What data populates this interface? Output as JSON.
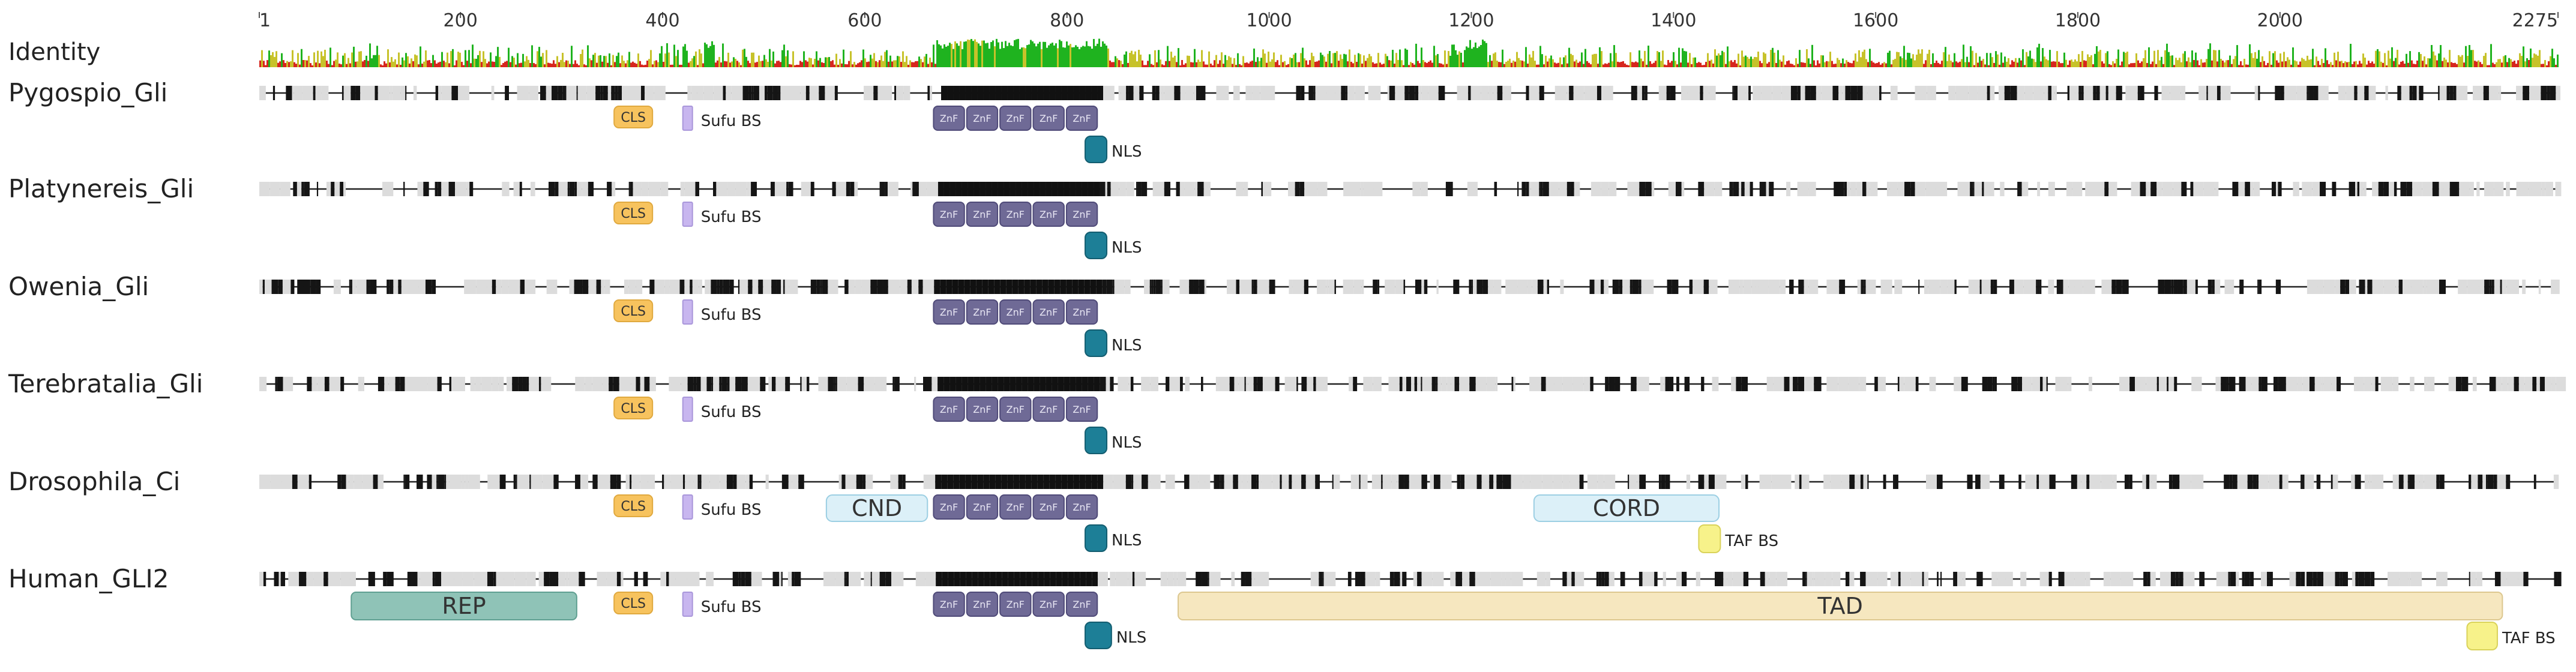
{
  "chart_data": {
    "type": "sequence-alignment-domain-map",
    "identity_label": "Identity",
    "axis": {
      "start": 1,
      "end": 2275,
      "ticks": [
        {
          "value": 1,
          "label": "1"
        },
        {
          "value": 200,
          "label": "200"
        },
        {
          "value": 400,
          "label": "400"
        },
        {
          "value": 600,
          "label": "600"
        },
        {
          "value": 800,
          "label": "800"
        },
        {
          "value": 1000,
          "label": "1000"
        },
        {
          "value": 1200,
          "label": "1200"
        },
        {
          "value": 1400,
          "label": "1400"
        },
        {
          "value": 1600,
          "label": "1600"
        },
        {
          "value": 1800,
          "label": "1800"
        },
        {
          "value": 2000,
          "label": "2000"
        },
        {
          "value": 2275,
          "label": "2275"
        }
      ]
    },
    "identity_colors": {
      "high": "#1fb31f",
      "mid": "#c7c22a",
      "low": "#d6261e"
    },
    "identity_high_regions": [
      [
        440,
        450
      ],
      [
        670,
        840
      ],
      [
        1195,
        1215
      ]
    ],
    "domain_colors": {
      "CLS": "#f7c35e",
      "SufuBS": "#c8b6ef",
      "ZnF": "#6f6a96",
      "NLS": "#1d7f97",
      "CND": "#dcf0f8",
      "CORD": "#dcf0f8",
      "REP": "#8fc3b7",
      "TAD": "#f6e7bf",
      "TAFBS": "#f7f28a"
    },
    "sequences": [
      {
        "name": "Pygospio_Gli",
        "domains": [
          {
            "type": "CLS",
            "label": "CLS",
            "start": 352,
            "end": 390
          },
          {
            "type": "SufuBS",
            "label": "Sufu BS",
            "start": 420,
            "end": 432
          },
          {
            "type": "ZnF",
            "label": "ZnF",
            "start": 668,
            "end": 830,
            "count": 5
          },
          {
            "type": "NLS",
            "label": "NLS",
            "start": 818,
            "end": 838
          }
        ]
      },
      {
        "name": "Platynereis_Gli",
        "domains": [
          {
            "type": "CLS",
            "label": "CLS",
            "start": 352,
            "end": 390
          },
          {
            "type": "SufuBS",
            "label": "Sufu BS",
            "start": 420,
            "end": 432
          },
          {
            "type": "ZnF",
            "label": "ZnF",
            "start": 668,
            "end": 830,
            "count": 5
          },
          {
            "type": "NLS",
            "label": "NLS",
            "start": 818,
            "end": 838
          }
        ]
      },
      {
        "name": "Owenia_Gli",
        "domains": [
          {
            "type": "CLS",
            "label": "CLS",
            "start": 352,
            "end": 390
          },
          {
            "type": "SufuBS",
            "label": "Sufu BS",
            "start": 420,
            "end": 432
          },
          {
            "type": "ZnF",
            "label": "ZnF",
            "start": 668,
            "end": 830,
            "count": 5
          },
          {
            "type": "NLS",
            "label": "NLS",
            "start": 818,
            "end": 838
          }
        ]
      },
      {
        "name": "Terebratalia_Gli",
        "domains": [
          {
            "type": "CLS",
            "label": "CLS",
            "start": 352,
            "end": 390
          },
          {
            "type": "SufuBS",
            "label": "Sufu BS",
            "start": 420,
            "end": 432
          },
          {
            "type": "ZnF",
            "label": "ZnF",
            "start": 668,
            "end": 830,
            "count": 5
          },
          {
            "type": "NLS",
            "label": "NLS",
            "start": 818,
            "end": 838
          }
        ]
      },
      {
        "name": "Drosophila_Ci",
        "domains": [
          {
            "type": "CLS",
            "label": "CLS",
            "start": 352,
            "end": 390
          },
          {
            "type": "SufuBS",
            "label": "Sufu BS",
            "start": 420,
            "end": 432
          },
          {
            "type": "CND",
            "label": "CND",
            "start": 562,
            "end": 662
          },
          {
            "type": "ZnF",
            "label": "ZnF",
            "start": 668,
            "end": 830,
            "count": 5
          },
          {
            "type": "NLS",
            "label": "NLS",
            "start": 818,
            "end": 838
          },
          {
            "type": "CORD",
            "label": "CORD",
            "start": 1262,
            "end": 1445
          },
          {
            "type": "TAFBS",
            "label": "TAF BS",
            "start": 1425,
            "end": 1446
          }
        ]
      },
      {
        "name": "Human_GLI2",
        "domains": [
          {
            "type": "REP",
            "label": "REP",
            "start": 92,
            "end": 315
          },
          {
            "type": "CLS",
            "label": "CLS",
            "start": 352,
            "end": 390
          },
          {
            "type": "SufuBS",
            "label": "Sufu BS",
            "start": 420,
            "end": 432
          },
          {
            "type": "ZnF",
            "label": "ZnF",
            "start": 668,
            "end": 830,
            "count": 5
          },
          {
            "type": "NLS",
            "label": "NLS",
            "start": 818,
            "end": 844
          },
          {
            "type": "TAD",
            "label": "TAD",
            "start": 910,
            "end": 2220
          },
          {
            "type": "TAFBS",
            "label": "TAF BS",
            "start": 2185,
            "end": 2215
          }
        ]
      }
    ]
  }
}
